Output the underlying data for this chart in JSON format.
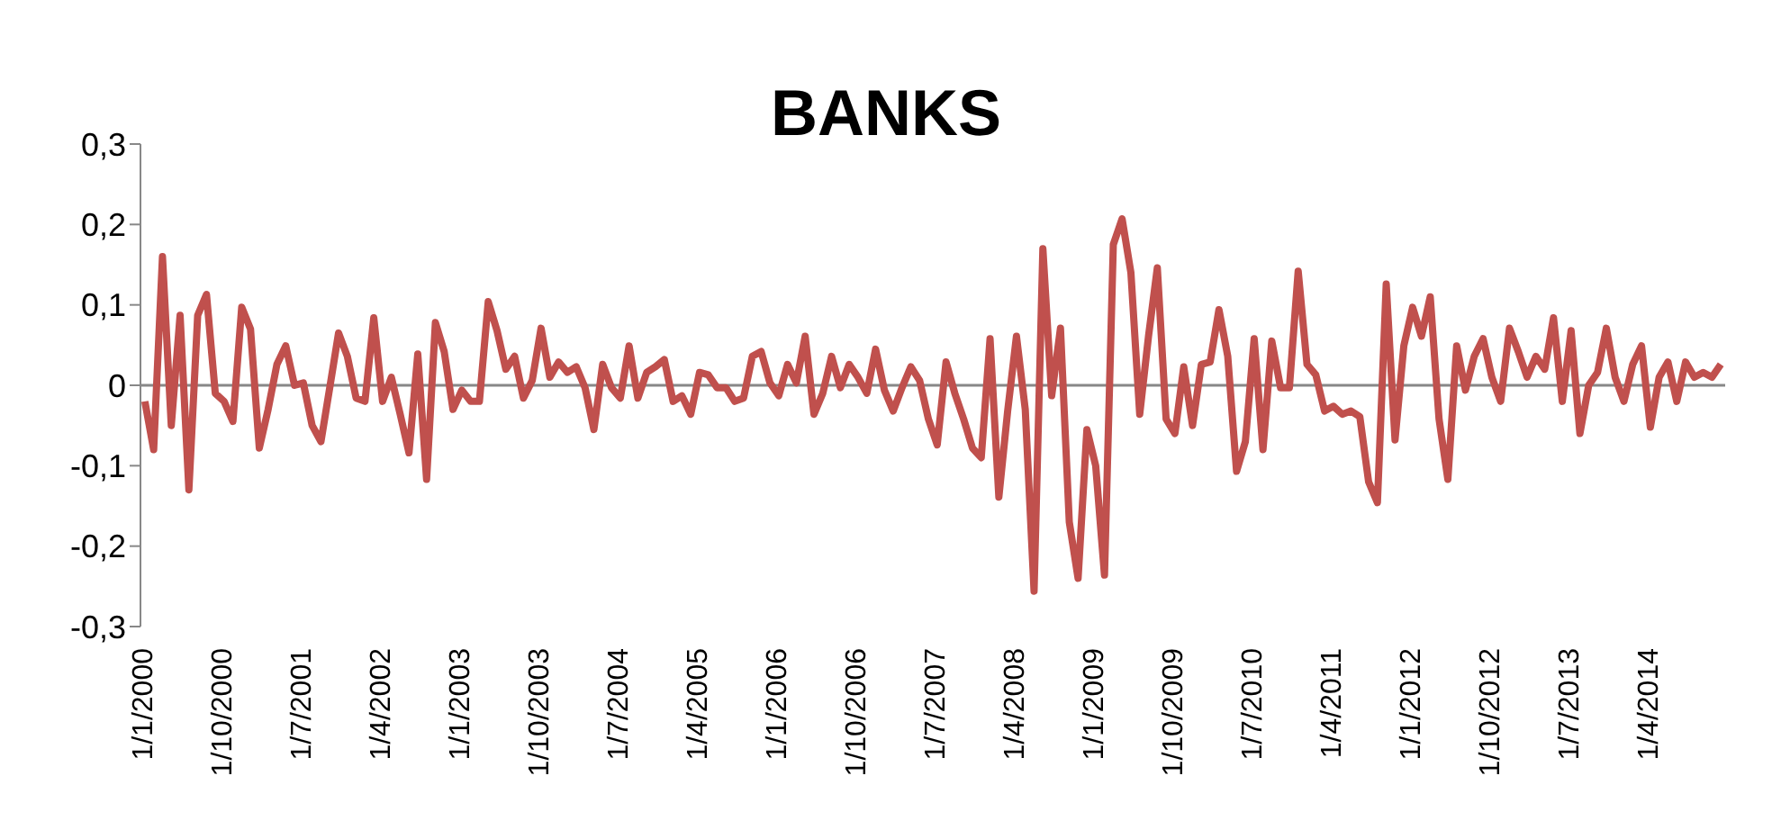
{
  "chart_data": {
    "type": "line",
    "title": "BANKS",
    "categories": [
      "1/1/2000",
      null,
      null,
      null,
      null,
      null,
      null,
      null,
      null,
      "1/10/2000",
      null,
      null,
      null,
      null,
      null,
      null,
      null,
      null,
      "1/7/2001",
      null,
      null,
      null,
      null,
      null,
      null,
      null,
      null,
      "1/4/2002",
      null,
      null,
      null,
      null,
      null,
      null,
      null,
      null,
      "1/1/2003",
      null,
      null,
      null,
      null,
      null,
      null,
      null,
      null,
      "1/10/2003",
      null,
      null,
      null,
      null,
      null,
      null,
      null,
      null,
      "1/7/2004",
      null,
      null,
      null,
      null,
      null,
      null,
      null,
      null,
      "1/4/2005",
      null,
      null,
      null,
      null,
      null,
      null,
      null,
      null,
      "1/1/2006",
      null,
      null,
      null,
      null,
      null,
      null,
      null,
      null,
      "1/10/2006",
      null,
      null,
      null,
      null,
      null,
      null,
      null,
      null,
      "1/7/2007",
      null,
      null,
      null,
      null,
      null,
      null,
      null,
      null,
      "1/4/2008",
      null,
      null,
      null,
      null,
      null,
      null,
      null,
      null,
      "1/1/2009",
      null,
      null,
      null,
      null,
      null,
      null,
      null,
      null,
      "1/10/2009",
      null,
      null,
      null,
      null,
      null,
      null,
      null,
      null,
      "1/7/2010",
      null,
      null,
      null,
      null,
      null,
      null,
      null,
      null,
      "1/4/2011",
      null,
      null,
      null,
      null,
      null,
      null,
      null,
      null,
      "1/1/2012",
      null,
      null,
      null,
      null,
      null,
      null,
      null,
      null,
      "1/10/2012",
      null,
      null,
      null,
      null,
      null,
      null,
      null,
      null,
      "1/7/2013",
      null,
      null,
      null,
      null,
      null,
      null,
      null,
      null,
      "1/4/2014",
      null,
      null,
      null,
      null,
      null,
      null,
      null,
      null
    ],
    "series": [
      {
        "color": "#c0504d",
        "values": [
          -0.02,
          -0.08,
          0.16,
          -0.05,
          0.087,
          -0.13,
          0.087,
          0.113,
          -0.01,
          -0.02,
          -0.045,
          0.097,
          0.07,
          -0.078,
          -0.03,
          0.026,
          0.049,
          0,
          0.003,
          -0.05,
          -0.07,
          -0.003,
          0.065,
          0.036,
          -0.016,
          -0.02,
          0.084,
          -0.02,
          0.01,
          -0.036,
          -0.084,
          0.039,
          -0.117,
          0.078,
          0.042,
          -0.03,
          -0.006,
          -0.02,
          -0.02,
          0.104,
          0.068,
          0.02,
          0.036,
          -0.016,
          0.006,
          0.071,
          0.01,
          0.029,
          0.016,
          0.023,
          -0.003,
          -0.055,
          0.026,
          -0.003,
          -0.016,
          0.049,
          -0.016,
          0.016,
          0.023,
          0.032,
          -0.02,
          -0.013,
          -0.036,
          0.016,
          0.013,
          -0.003,
          -0.003,
          -0.02,
          -0.016,
          0.036,
          0.042,
          0.003,
          -0.013,
          0.026,
          0.003,
          0.061,
          -0.036,
          -0.01,
          0.036,
          -0.003,
          0.026,
          0.01,
          -0.01,
          0.045,
          -0.006,
          -0.032,
          -0.003,
          0.023,
          0.006,
          -0.042,
          -0.074,
          0.029,
          -0.01,
          -0.042,
          -0.078,
          -0.09,
          0.058,
          -0.139,
          -0.032,
          0.061,
          -0.03,
          -0.256,
          0.17,
          -0.013,
          0.071,
          -0.17,
          -0.24,
          -0.055,
          -0.1,
          -0.236,
          0.175,
          0.207,
          0.14,
          -0.036,
          0.061,
          0.146,
          -0.042,
          -0.06,
          0.023,
          -0.05,
          0.026,
          0.029,
          0.094,
          0.036,
          -0.107,
          -0.07,
          0.058,
          -0.08,
          0.055,
          -0.003,
          -0.003,
          0.142,
          0.026,
          0.013,
          -0.032,
          -0.026,
          -0.036,
          -0.032,
          -0.039,
          -0.12,
          -0.146,
          0.126,
          -0.068,
          0.049,
          0.097,
          0.061,
          0.11,
          -0.042,
          -0.117,
          0.049,
          -0.006,
          0.036,
          0.058,
          0.01,
          -0.02,
          0.071,
          0.042,
          0.01,
          0.036,
          0.02,
          0.084,
          -0.02,
          0.068,
          -0.06,
          0,
          0.016,
          0.071,
          0.01,
          -0.02,
          0.026,
          0.049,
          -0.052,
          0.01,
          0.029,
          -0.02,
          0.029,
          0.01,
          0.016,
          0.01,
          0.026
        ]
      }
    ],
    "ylim": [
      -0.3,
      0.3
    ],
    "yticks": [
      {
        "value": -0.3,
        "label": "-0,3"
      },
      {
        "value": -0.2,
        "label": "-0,2"
      },
      {
        "value": -0.1,
        "label": "-0,1"
      },
      {
        "value": 0,
        "label": "0"
      },
      {
        "value": 0.1,
        "label": "0,1"
      },
      {
        "value": 0.2,
        "label": "0,2"
      },
      {
        "value": 0.3,
        "label": "0,3"
      }
    ],
    "legend": false,
    "marker": "none",
    "line_style": "solid"
  }
}
